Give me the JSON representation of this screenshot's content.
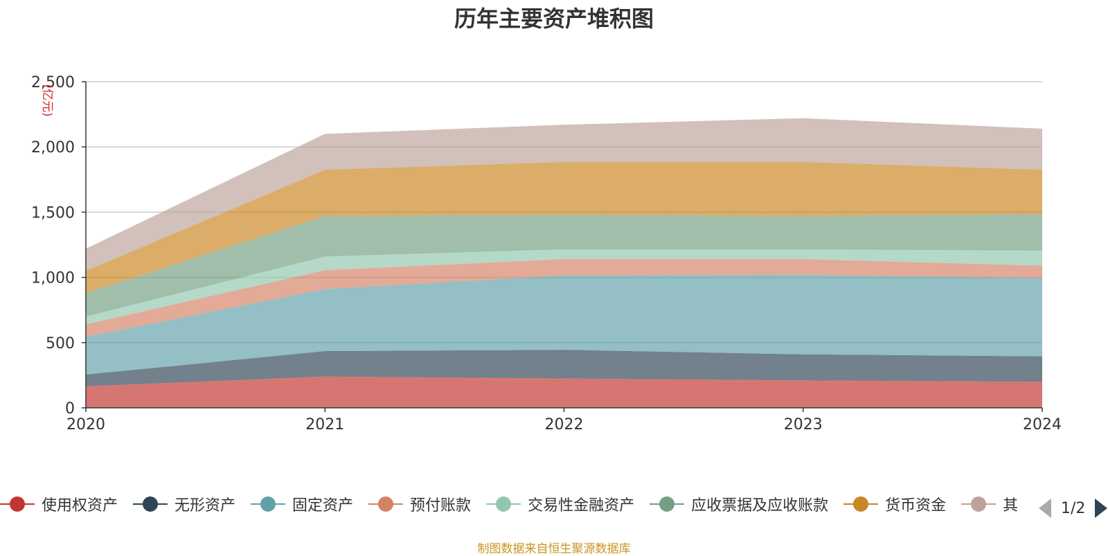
{
  "chart_data": {
    "type": "area",
    "stacked": true,
    "title": "历年主要资产堆积图",
    "ylabel": "(亿元)",
    "xlabel": "",
    "x": [
      "2020",
      "2021",
      "2022",
      "2023",
      "2024"
    ],
    "ylim": [
      0,
      2500
    ],
    "yticks": [
      0,
      500,
      1000,
      1500,
      2000,
      2500
    ],
    "ytick_labels": [
      "0",
      "500",
      "1,000",
      "1,500",
      "2,000",
      "2,500"
    ],
    "grid": true,
    "legend_position": "bottom",
    "series": [
      {
        "name": "使用权资产",
        "values": [
          165,
          240,
          225,
          210,
          200
        ],
        "color": "#c23531"
      },
      {
        "name": "无形资产",
        "values": [
          90,
          195,
          220,
          200,
          195
        ],
        "color": "#2f4554"
      },
      {
        "name": "固定资产",
        "values": [
          290,
          475,
          570,
          610,
          600
        ],
        "color": "#61a0a8"
      },
      {
        "name": "预付账款",
        "values": [
          95,
          145,
          125,
          120,
          95
        ],
        "color": "#d48265"
      },
      {
        "name": "交易性金融资产",
        "values": [
          60,
          105,
          75,
          75,
          115
        ],
        "color": "#91c7ae"
      },
      {
        "name": "应收票据及应收账款",
        "values": [
          180,
          310,
          265,
          255,
          280
        ],
        "color": "#749f83"
      },
      {
        "name": "货币资金",
        "values": [
          170,
          355,
          405,
          415,
          340
        ],
        "color": "#ca8622"
      },
      {
        "name": "其他",
        "values": [
          170,
          275,
          285,
          335,
          315
        ],
        "color": "#bda29a"
      }
    ]
  },
  "legend": {
    "page_text": "1/2"
  },
  "source_text": "制图数据来自恒生聚源数据库"
}
